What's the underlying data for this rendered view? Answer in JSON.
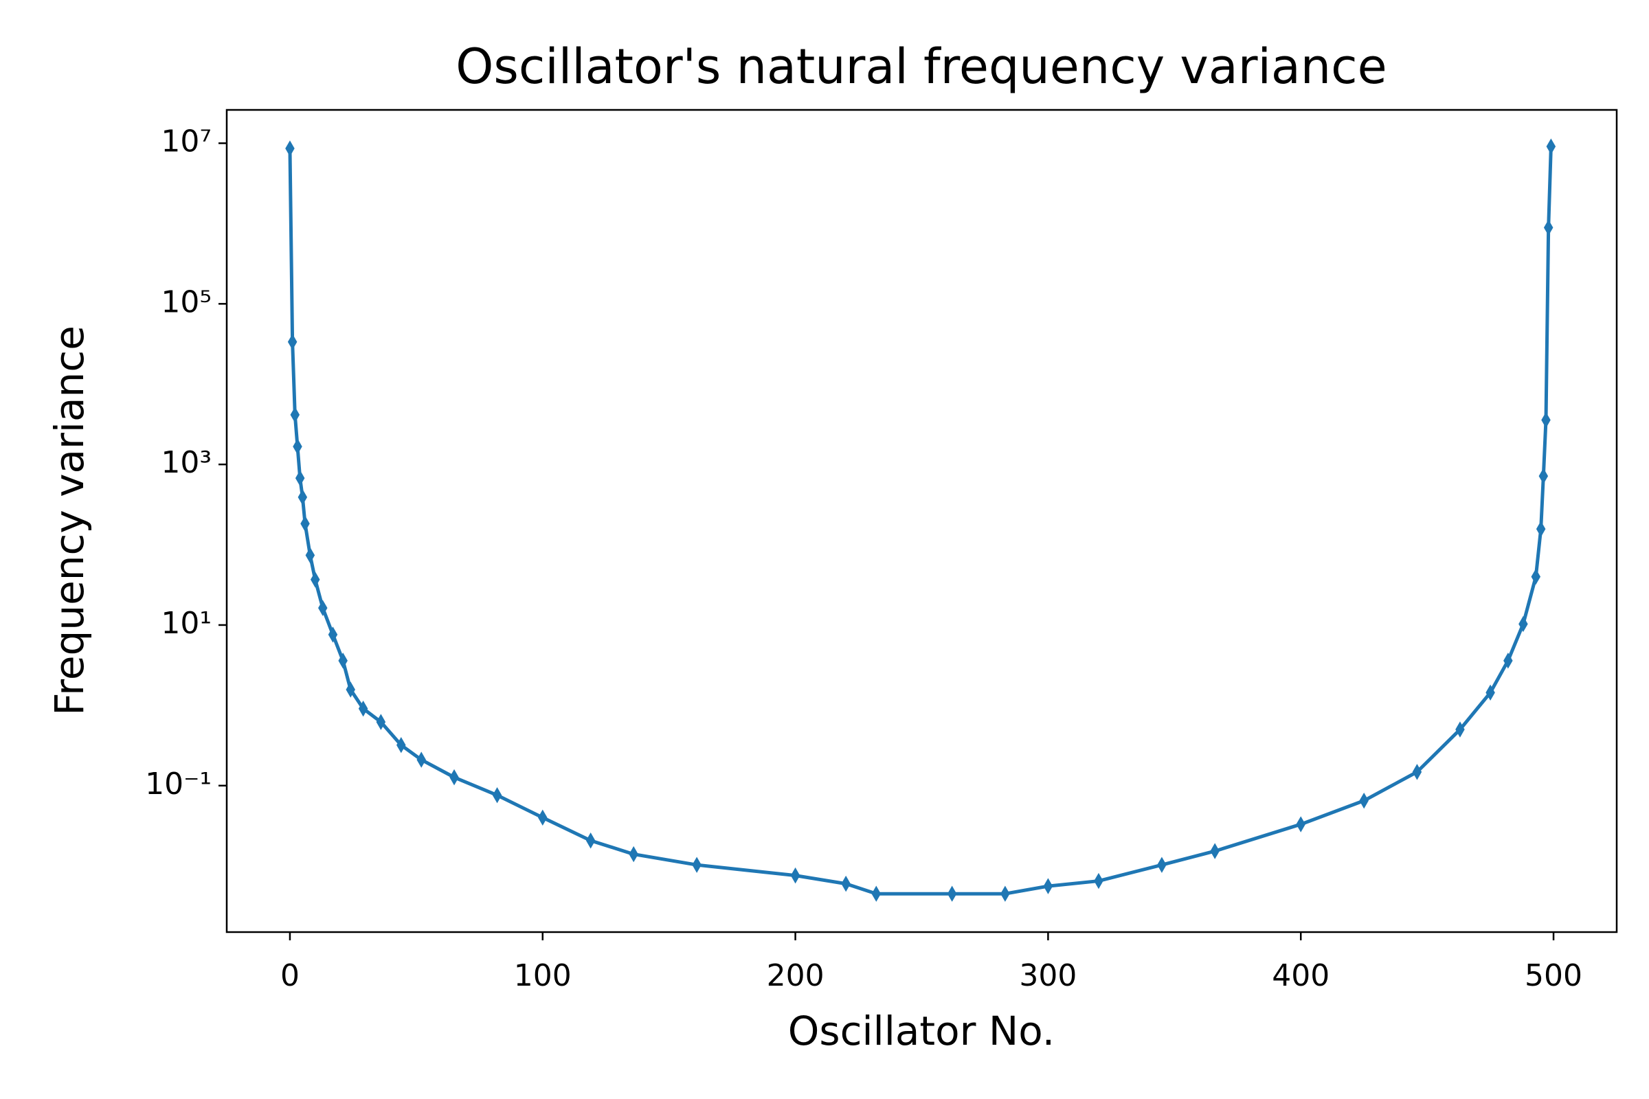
{
  "chart_data": {
    "type": "line",
    "title": "Oscillator's natural frequency variance",
    "xlabel": "Oscillator No.",
    "ylabel": "Frequency variance",
    "x": [
      0,
      1,
      2,
      3,
      4,
      5,
      6,
      8,
      10,
      13,
      17,
      21,
      24,
      29,
      36,
      44,
      52,
      65,
      82,
      100,
      119,
      136,
      161,
      200,
      220,
      232,
      262,
      283,
      300,
      320,
      345,
      366,
      400,
      425,
      446,
      463,
      475,
      482,
      488,
      493,
      495,
      496,
      497,
      498,
      499
    ],
    "values": [
      8600000,
      33600,
      4150,
      1670,
      675,
      391,
      183,
      73.9,
      36.8,
      16.3,
      7.6,
      3.6,
      1.57,
      0.91,
      0.62,
      0.32,
      0.21,
      0.127,
      0.076,
      0.04,
      0.0207,
      0.014,
      0.0103,
      0.0076,
      0.006,
      0.0045,
      0.0045,
      0.0045,
      0.0056,
      0.0065,
      0.0103,
      0.0153,
      0.033,
      0.065,
      0.148,
      0.5,
      1.44,
      3.6,
      10.3,
      40,
      157,
      716,
      3570,
      890000,
      9100000
    ],
    "color": "#1f77b4",
    "marker": "diamond",
    "yscale": "log",
    "xlim": [
      -25,
      525
    ],
    "ylim": [
      0.0015,
      26000000
    ],
    "xticks": [
      0,
      100,
      200,
      300,
      400,
      500
    ],
    "yticks": [
      {
        "value": 0.1,
        "label": "10⁻¹"
      },
      {
        "value": 10,
        "label": "10¹"
      },
      {
        "value": 1000,
        "label": "10³"
      },
      {
        "value": 100000,
        "label": "10⁵"
      },
      {
        "value": 10000000,
        "label": "10⁷"
      }
    ]
  }
}
